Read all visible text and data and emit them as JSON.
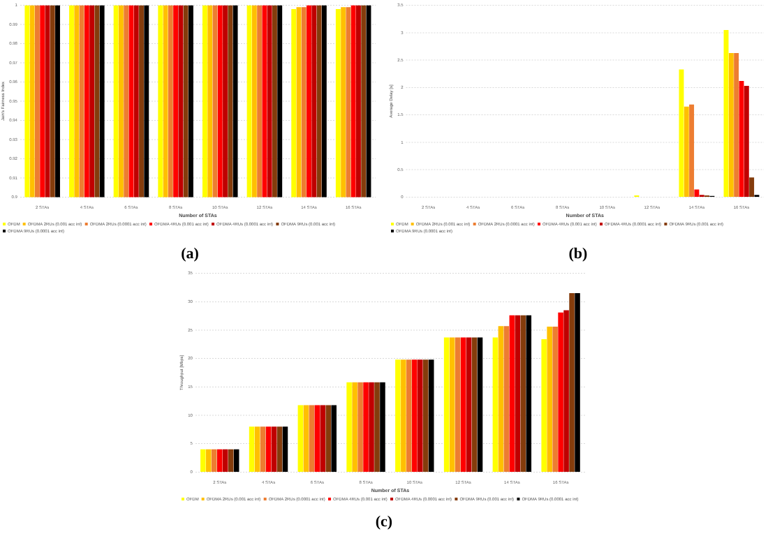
{
  "chart_data": [
    {
      "type": "bar",
      "xlabel": "Number of STAs",
      "ylabel": "Jain's Fairness Index",
      "categories": [
        "2 STAs",
        "4 STAs",
        "6 STAs",
        "8 STAs",
        "10 STAs",
        "12 STAs",
        "14 STAs",
        "16 STAs"
      ],
      "series": [
        {
          "name": "OFDM",
          "color": "#ffff00",
          "values": [
            1,
            1,
            1,
            1,
            1,
            1,
            0.998,
            0.998
          ]
        },
        {
          "name": "OFDMA 2RUs (0.001 acc int)",
          "color": "#ffc000",
          "values": [
            1,
            1,
            1,
            1,
            1,
            1,
            0.999,
            0.999
          ]
        },
        {
          "name": "OFDMA 2RUs (0.0001 acc int)",
          "color": "#ed7d31",
          "values": [
            1,
            1,
            1,
            1,
            1,
            1,
            0.999,
            0.999
          ]
        },
        {
          "name": "OFDMA 4RUs (0.001 acc int)",
          "color": "#ff0000",
          "values": [
            1,
            1,
            1,
            1,
            1,
            1,
            1,
            1
          ]
        },
        {
          "name": "OFDMA 4RUs (0.0001 acc int)",
          "color": "#c00000",
          "values": [
            1,
            1,
            1,
            1,
            1,
            1,
            1,
            1
          ]
        },
        {
          "name": "OFDMA 9RUs (0.001 acc int)",
          "color": "#843c0c",
          "values": [
            1,
            1,
            1,
            1,
            1,
            1,
            1,
            1
          ]
        },
        {
          "name": "OFDMA 9RUs (0.0001 acc int)",
          "color": "#000000",
          "values": [
            1,
            1,
            1,
            1,
            1,
            1,
            1,
            1
          ]
        }
      ],
      "ylim": [
        0.9,
        1
      ],
      "yticks": [
        0.9,
        0.91,
        0.92,
        0.93,
        0.94,
        0.95,
        0.96,
        0.97,
        0.98,
        0.99,
        1
      ],
      "grid": "y",
      "legend": "bottom",
      "annotations": [
        "(a)"
      ]
    },
    {
      "type": "bar",
      "xlabel": "Number of STAs",
      "ylabel": "Average Delay [s]",
      "categories": [
        "2 STAs",
        "4 STAs",
        "6 STAs",
        "8 STAs",
        "10 STAs",
        "12 STAs",
        "14 STAs",
        "16 STAs"
      ],
      "series": [
        {
          "name": "OFDM",
          "color": "#ffff00",
          "values": [
            0,
            0,
            0,
            0,
            0,
            0.03,
            2.33,
            3.05
          ]
        },
        {
          "name": "OFDMA 2RUs (0.001 acc int)",
          "color": "#ffc000",
          "values": [
            0,
            0,
            0,
            0,
            0,
            0,
            1.65,
            2.63
          ]
        },
        {
          "name": "OFDMA 2RUs (0.0001 acc int)",
          "color": "#ed7d31",
          "values": [
            0,
            0,
            0,
            0,
            0,
            0,
            1.69,
            2.63
          ]
        },
        {
          "name": "OFDMA 4RUs (0.001 acc int)",
          "color": "#ff0000",
          "values": [
            0,
            0,
            0,
            0,
            0,
            0,
            0.14,
            2.12
          ]
        },
        {
          "name": "OFDMA 4RUs (0.0001 acc int)",
          "color": "#c00000",
          "values": [
            0,
            0,
            0,
            0,
            0,
            0,
            0.04,
            2.03
          ]
        },
        {
          "name": "OFDMA 9RUs (0.001 acc int)",
          "color": "#843c0c",
          "values": [
            0,
            0,
            0,
            0,
            0,
            0,
            0.03,
            0.36
          ]
        },
        {
          "name": "OFDMA 9RUs (0.0001 acc int)",
          "color": "#000000",
          "values": [
            0,
            0,
            0,
            0,
            0,
            0,
            0.02,
            0.04
          ]
        }
      ],
      "ylim": [
        0,
        3.5
      ],
      "yticks": [
        0,
        0.5,
        1,
        1.5,
        2,
        2.5,
        3,
        3.5
      ],
      "grid": "y",
      "legend": "bottom",
      "annotations": [
        "(b)"
      ]
    },
    {
      "type": "bar",
      "xlabel": "Number of STAs",
      "ylabel": "Throughput [Mbps]",
      "categories": [
        "2 STAs",
        "4 STAs",
        "6 STAs",
        "8 STAs",
        "10 STAs",
        "12 STAs",
        "14 STAs",
        "16 STAs"
      ],
      "series": [
        {
          "name": "OFDM",
          "color": "#ffff00",
          "values": [
            4,
            8,
            11.8,
            15.8,
            19.8,
            23.7,
            23.7,
            23.4
          ]
        },
        {
          "name": "OFDMA 2RUs (0.001 acc int)",
          "color": "#ffc000",
          "values": [
            4,
            8,
            11.8,
            15.8,
            19.8,
            23.7,
            25.7,
            25.6
          ]
        },
        {
          "name": "OFDMA 2RUs (0.0001 acc int)",
          "color": "#ed7d31",
          "values": [
            4,
            8,
            11.8,
            15.8,
            19.8,
            23.7,
            25.7,
            25.6
          ]
        },
        {
          "name": "OFDMA 4RUs (0.001 acc int)",
          "color": "#ff0000",
          "values": [
            4,
            8,
            11.8,
            15.8,
            19.8,
            23.7,
            27.6,
            28.1
          ]
        },
        {
          "name": "OFDMA 4RUs (0.0001 acc int)",
          "color": "#c00000",
          "values": [
            4,
            8,
            11.8,
            15.8,
            19.8,
            23.7,
            27.6,
            28.5
          ]
        },
        {
          "name": "OFDMA 9RUs (0.001 acc int)",
          "color": "#843c0c",
          "values": [
            4,
            8,
            11.8,
            15.8,
            19.8,
            23.7,
            27.6,
            31.5
          ]
        },
        {
          "name": "OFDMA 9RUs (0.0001 acc int)",
          "color": "#000000",
          "values": [
            4,
            8,
            11.8,
            15.8,
            19.8,
            23.7,
            27.6,
            31.5
          ]
        }
      ],
      "ylim": [
        0,
        35
      ],
      "yticks": [
        0,
        5,
        10,
        15,
        20,
        25,
        30,
        35
      ],
      "grid": "y",
      "legend": "bottom",
      "annotations": [
        "(c)"
      ]
    }
  ]
}
